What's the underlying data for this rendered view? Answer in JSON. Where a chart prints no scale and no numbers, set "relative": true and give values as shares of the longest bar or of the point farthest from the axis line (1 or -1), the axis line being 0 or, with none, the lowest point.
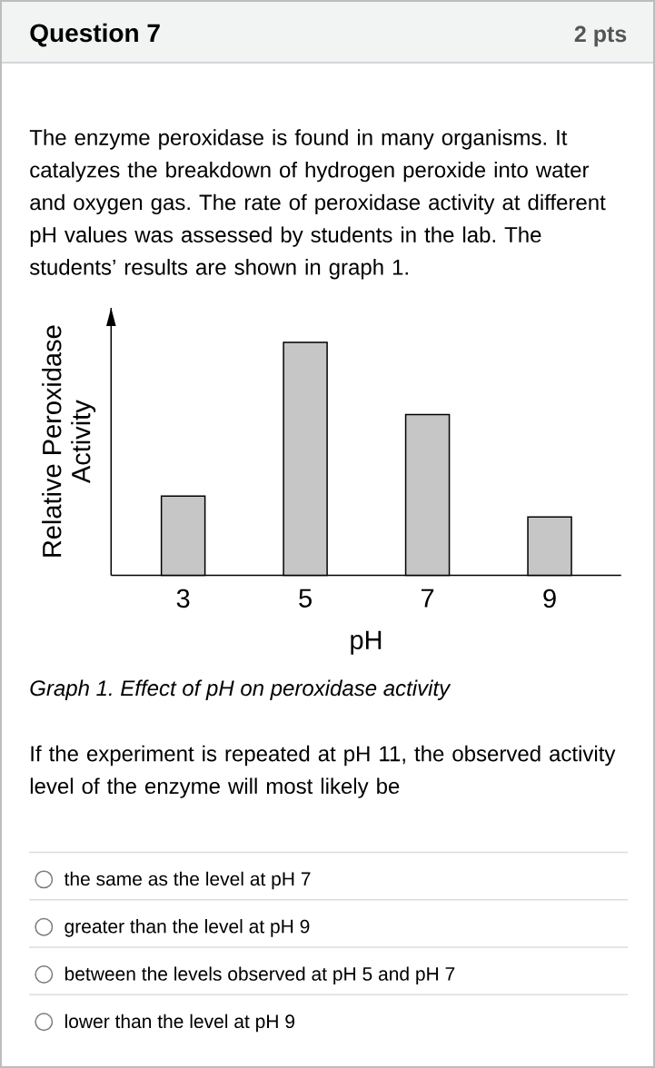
{
  "chart_data": {
    "type": "bar",
    "title": "Graph 1. Effect of pH on peroxidase activity",
    "xlabel": "pH",
    "ylabel": "Relative Peroxidase Activity",
    "categories": [
      "3",
      "5",
      "7",
      "9"
    ],
    "values": [
      0.34,
      1,
      0.69,
      0.25
    ],
    "color": "#c6c6c6",
    "relative": true,
    "annotations": [
      "Question 7",
      "2 pts",
      "The enzyme peroxidase is found in many organisms. It catalyzes the breakdown of hydrogen peroxide into water and oxygen gas. The rate of peroxidase activity at different pH values was assessed by students in the lab. The students’ results are shown in graph 1.",
      "If the experiment is repeated at pH 11, the observed activity level of the enzyme will most likely be",
      "the same as the level at pH 7",
      "greater than the level at pH 9",
      "between the levels observed at pH 5 and pH 7",
      "lower than the level at pH 9"
    ]
  }
}
